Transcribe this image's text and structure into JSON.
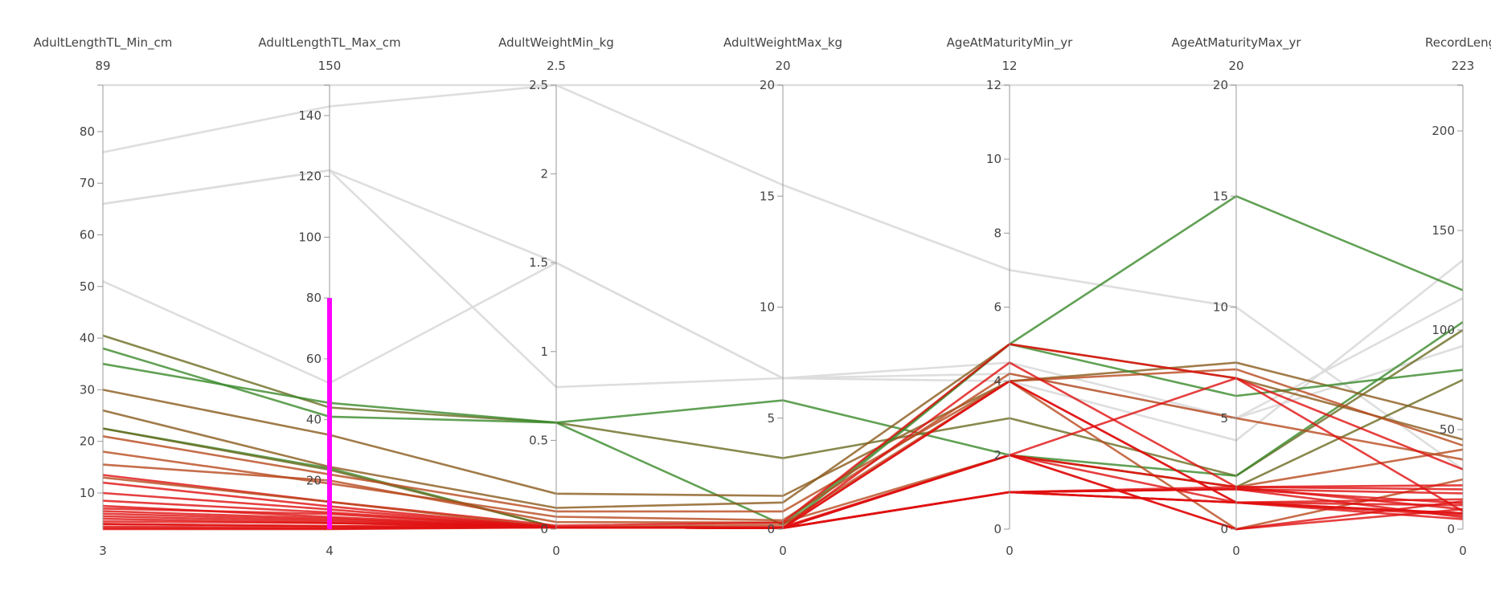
{
  "chart_data": {
    "type": "parallel_coordinates",
    "colors": {
      "context": "#dcdcdc",
      "brush": "#ff00ff",
      "scale": [
        "#e01010",
        "#b84a1e",
        "#8a5a1c",
        "#6b6b22",
        "#3a8a2a"
      ]
    },
    "axes": [
      {
        "label": "AdultLengthTL_Min_cm",
        "min": 3,
        "max": 89,
        "min_label": "3",
        "max_label": "89",
        "ticks": [
          10,
          20,
          30,
          40,
          50,
          60,
          70,
          80
        ]
      },
      {
        "label": "AdultLengthTL_Max_cm",
        "min": 4,
        "max": 150,
        "min_label": "4",
        "max_label": "150",
        "ticks": [
          20,
          40,
          60,
          80,
          100,
          120,
          140
        ],
        "brush": [
          4,
          80
        ]
      },
      {
        "label": "AdultWeightMin_kg",
        "min": 0,
        "max": 2.5,
        "min_label": "0",
        "max_label": "2.5",
        "ticks": [
          0.5,
          1,
          1.5,
          2,
          2.5
        ],
        "tick_labels": [
          "0.5",
          "1",
          "1.5",
          "2",
          "2.5"
        ]
      },
      {
        "label": "AdultWeightMax_kg",
        "min": 0,
        "max": 20,
        "min_label": "0",
        "max_label": "20",
        "ticks": [
          5,
          10,
          15,
          20
        ]
      },
      {
        "label": "AgeAtMaturityMin_yr",
        "min": 0,
        "max": 12,
        "min_label": "0",
        "max_label": "12",
        "ticks": [
          2,
          4,
          6,
          8,
          10,
          12
        ]
      },
      {
        "label": "AgeAtMaturityMax_yr",
        "min": 0,
        "max": 20,
        "min_label": "0",
        "max_label": "20",
        "ticks": [
          5,
          10,
          15,
          20
        ]
      },
      {
        "label": "RecordLengt",
        "min": 0,
        "max": 223,
        "min_label": "0",
        "max_label": "223",
        "ticks": [
          50,
          100,
          150,
          200
        ]
      }
    ],
    "context_lines": [
      [
        76,
        143,
        2.5,
        15.5,
        7,
        10,
        30
      ],
      [
        66,
        122,
        1.5,
        6.8,
        4.5,
        5,
        116
      ],
      [
        51,
        52,
        1.5,
        6.8,
        4.2,
        5,
        92
      ],
      [
        89,
        150,
        2.5,
        20,
        12,
        20,
        223
      ],
      [
        66,
        122,
        0.8,
        6.8,
        4,
        4,
        135
      ]
    ],
    "highlight_lines": [
      {
        "values": [
          40.5,
          44,
          0.6,
          3.2,
          3,
          2.4,
          100
        ],
        "color_index": 3
      },
      {
        "values": [
          35,
          45.5,
          0.6,
          5.8,
          2,
          2.4,
          104
        ],
        "color_index": 4
      },
      {
        "values": [
          38,
          41,
          0.6,
          0.2,
          5,
          15,
          120
        ],
        "color_index": 4
      },
      {
        "values": [
          30,
          35,
          0.2,
          1.5,
          4,
          7.5,
          55
        ],
        "color_index": 2
      },
      {
        "values": [
          22.5,
          24,
          0.01,
          0.05,
          5,
          6,
          80
        ],
        "color_index": 4
      },
      {
        "values": [
          22.5,
          23.5,
          0.01,
          0.05,
          2,
          1.9,
          75
        ],
        "color_index": 3
      },
      {
        "values": [
          26,
          24.5,
          0.12,
          1.2,
          5,
          6.8,
          45
        ],
        "color_index": 2
      },
      {
        "values": [
          21,
          22,
          0.1,
          0.8,
          4,
          7.2,
          42
        ],
        "color_index": 1
      },
      {
        "values": [
          18,
          19,
          0.07,
          0.4,
          4.2,
          5,
          35
        ],
        "color_index": 1
      },
      {
        "values": [
          15.5,
          20,
          0.04,
          0.3,
          2,
          1.9,
          40
        ],
        "color_index": 1
      },
      {
        "values": [
          13.5,
          13,
          0.02,
          0.3,
          5,
          6.8,
          30
        ],
        "color_index": 0
      },
      {
        "values": [
          13,
          13,
          0.01,
          0.2,
          4,
          0,
          25
        ],
        "color_index": 1
      },
      {
        "values": [
          12,
          11.5,
          0.01,
          0.1,
          2,
          1.9,
          22
        ],
        "color_index": 0
      },
      {
        "values": [
          10,
          10.5,
          0.01,
          0.05,
          1,
          1.8,
          18
        ],
        "color_index": 0
      },
      {
        "values": [
          8.5,
          9.5,
          0.01,
          0.05,
          1,
          1.9,
          20
        ],
        "color_index": 0
      },
      {
        "values": [
          7.5,
          8,
          0.01,
          0.05,
          2,
          0,
          14
        ],
        "color_index": 0
      },
      {
        "values": [
          6.5,
          7.5,
          0.01,
          0.05,
          1,
          1.2,
          12
        ],
        "color_index": 0
      },
      {
        "values": [
          6,
          7,
          0.01,
          0.05,
          4.5,
          1.9,
          10
        ],
        "color_index": 0
      },
      {
        "values": [
          5.5,
          6.5,
          0.01,
          0.05,
          1,
          1.8,
          13
        ],
        "color_index": 0
      },
      {
        "values": [
          5,
          6,
          0.01,
          0.05,
          1,
          1.2,
          8
        ],
        "color_index": 0
      },
      {
        "values": [
          4.5,
          6,
          0.01,
          0.05,
          4,
          1.2,
          15
        ],
        "color_index": 0
      },
      {
        "values": [
          4,
          5,
          0.01,
          0.05,
          2,
          0,
          10
        ],
        "color_index": 0
      },
      {
        "values": [
          4,
          5,
          0.01,
          0.05,
          1,
          1.2,
          7
        ],
        "color_index": 0
      },
      {
        "values": [
          3.5,
          4.5,
          0.01,
          0.05,
          1,
          1.8,
          6
        ],
        "color_index": 0
      },
      {
        "values": [
          3.2,
          4.2,
          0.01,
          0.05,
          2,
          1.2,
          5
        ],
        "color_index": 0
      },
      {
        "values": [
          7,
          9,
          0.01,
          0.05,
          2,
          6.8,
          9
        ],
        "color_index": 0
      },
      {
        "values": [
          3,
          4,
          0.01,
          0.05,
          4,
          1.2,
          8
        ],
        "color_index": 0
      }
    ]
  }
}
